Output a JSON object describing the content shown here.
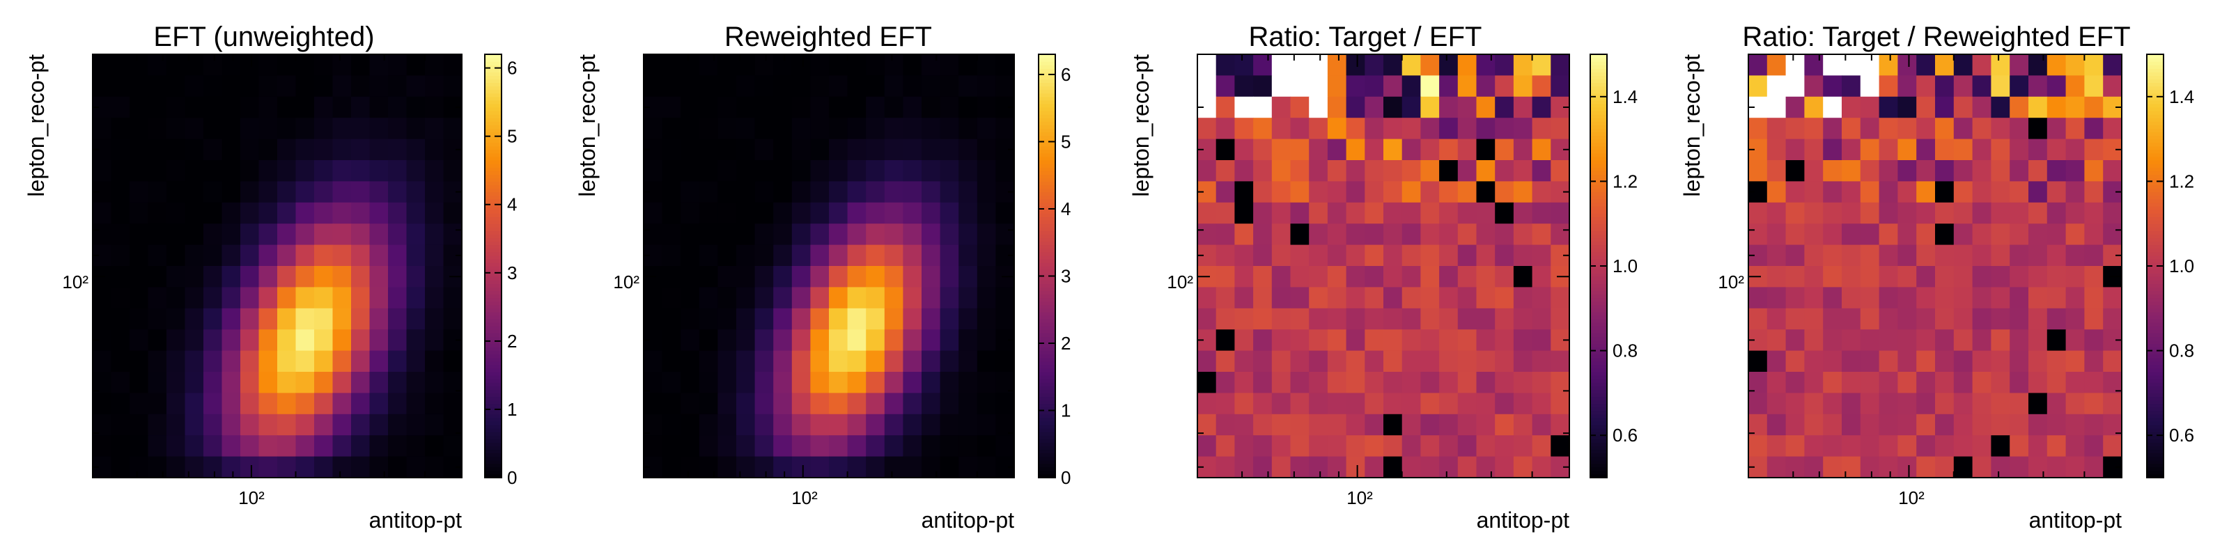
{
  "chart_data": [
    {
      "type": "heatmap",
      "title": "EFT (unweighted)",
      "xlabel": "antitop-pt",
      "ylabel": "lepton_reco-pt",
      "x_scale": "log",
      "y_scale": "log",
      "x_tick_labels": [
        "10²"
      ],
      "y_tick_labels": [
        "10²"
      ],
      "colormap": "inferno",
      "colorbar": {
        "range": [
          0,
          6.2
        ],
        "ticks": [
          "0",
          "1",
          "2",
          "3",
          "4",
          "5",
          "6"
        ]
      },
      "grid_size": [
        20,
        20
      ],
      "shape": {
        "kind": "peak",
        "cx": 0.58,
        "cy": 0.33,
        "sx": 0.15,
        "sy": 0.2,
        "rho": 0.45,
        "peak_value": 6.0
      }
    },
    {
      "type": "heatmap",
      "title": "Reweighted EFT",
      "xlabel": "antitop-pt",
      "ylabel": "lepton_reco-pt",
      "x_scale": "log",
      "y_scale": "log",
      "x_tick_labels": [
        "10²"
      ],
      "y_tick_labels": [
        "10²"
      ],
      "colormap": "inferno",
      "colorbar": {
        "range": [
          0,
          6.3
        ],
        "ticks": [
          "0",
          "1",
          "2",
          "3",
          "4",
          "5",
          "6"
        ]
      },
      "grid_size": [
        20,
        20
      ],
      "shape": {
        "kind": "peak",
        "cx": 0.57,
        "cy": 0.34,
        "sx": 0.14,
        "sy": 0.19,
        "rho": 0.45,
        "peak_value": 6.1
      }
    },
    {
      "type": "heatmap",
      "title": "Ratio: Target / EFT",
      "xlabel": "antitop-pt",
      "ylabel": "lepton_reco-pt",
      "x_scale": "log",
      "y_scale": "log",
      "x_tick_labels": [
        "10²"
      ],
      "y_tick_labels": [
        "10²"
      ],
      "colormap": "inferno",
      "colorbar": {
        "range": [
          0.5,
          1.5
        ],
        "ticks": [
          "0.6",
          "0.8",
          "1.0",
          "1.2",
          "1.4"
        ]
      },
      "grid_size": [
        20,
        20
      ],
      "shape": {
        "kind": "ratio",
        "seed": 11,
        "center": 1.0,
        "noise": 0.1,
        "noise_top": 0.45
      }
    },
    {
      "type": "heatmap",
      "title": "Ratio: Target / Reweighted EFT",
      "xlabel": "antitop-pt",
      "ylabel": "lepton_reco-pt",
      "x_scale": "log",
      "y_scale": "log",
      "x_tick_labels": [
        "10²"
      ],
      "y_tick_labels": [
        "10²"
      ],
      "colormap": "inferno",
      "colorbar": {
        "range": [
          0.5,
          1.5
        ],
        "ticks": [
          "0.6",
          "0.8",
          "1.0",
          "1.2",
          "1.4"
        ]
      },
      "grid_size": [
        20,
        20
      ],
      "shape": {
        "kind": "ratio",
        "seed": 29,
        "center": 1.0,
        "noise": 0.09,
        "noise_top": 0.42
      }
    }
  ]
}
